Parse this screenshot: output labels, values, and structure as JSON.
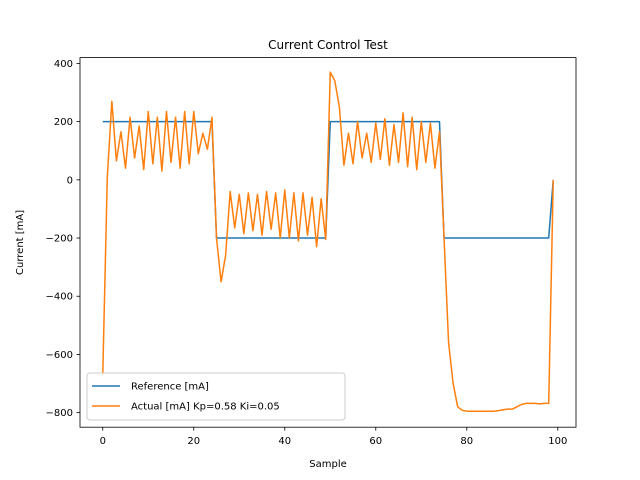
{
  "chart_data": {
    "type": "line",
    "title": "Current Control Test",
    "xlabel": "Sample",
    "ylabel": "Current [mA]",
    "xlim": [
      -5,
      104
    ],
    "ylim": [
      -850,
      420
    ],
    "xticks": [
      0,
      20,
      40,
      60,
      80,
      100
    ],
    "yticks": [
      -800,
      -600,
      -400,
      -200,
      0,
      200,
      400
    ],
    "grid": false,
    "legend_position": "lower-left",
    "series": [
      {
        "name": "Reference [mA]",
        "color": "#1f77b4",
        "x": [
          0,
          24,
          25,
          49,
          50,
          74,
          75,
          98,
          99
        ],
        "y": [
          200,
          200,
          -200,
          -200,
          200,
          200,
          -200,
          -200,
          0
        ]
      },
      {
        "name": "Actual [mA] Kp=0.58 Ki=0.05",
        "color": "#ff7f0e",
        "x": [
          0,
          1,
          2,
          3,
          4,
          5,
          6,
          7,
          8,
          9,
          10,
          11,
          12,
          13,
          14,
          15,
          16,
          17,
          18,
          19,
          20,
          21,
          22,
          23,
          24,
          25,
          26,
          27,
          28,
          29,
          30,
          31,
          32,
          33,
          34,
          35,
          36,
          37,
          38,
          39,
          40,
          41,
          42,
          43,
          44,
          45,
          46,
          47,
          48,
          49,
          50,
          51,
          52,
          53,
          54,
          55,
          56,
          57,
          58,
          59,
          60,
          61,
          62,
          63,
          64,
          65,
          66,
          67,
          68,
          69,
          70,
          71,
          72,
          73,
          74,
          75,
          76,
          77,
          78,
          79,
          80,
          81,
          82,
          83,
          84,
          85,
          86,
          87,
          88,
          89,
          90,
          91,
          92,
          93,
          94,
          95,
          96,
          97,
          98,
          99
        ],
        "y": [
          -670,
          10,
          270,
          65,
          165,
          40,
          215,
          75,
          185,
          35,
          235,
          55,
          215,
          30,
          235,
          60,
          215,
          40,
          235,
          55,
          235,
          90,
          160,
          105,
          215,
          -200,
          -350,
          -260,
          -40,
          -165,
          -50,
          -185,
          -45,
          -175,
          -50,
          -190,
          -40,
          -170,
          -45,
          -200,
          -35,
          -200,
          -45,
          -210,
          -45,
          -190,
          -60,
          -230,
          -65,
          -205,
          370,
          340,
          250,
          50,
          160,
          55,
          200,
          75,
          160,
          60,
          195,
          70,
          210,
          50,
          190,
          60,
          230,
          45,
          215,
          35,
          200,
          60,
          195,
          40,
          165,
          -200,
          -560,
          -700,
          -780,
          -792,
          -795,
          -795,
          -795,
          -795,
          -795,
          -795,
          -795,
          -793,
          -790,
          -788,
          -788,
          -780,
          -772,
          -768,
          -768,
          -768,
          -770,
          -768,
          -768,
          0
        ]
      }
    ]
  }
}
